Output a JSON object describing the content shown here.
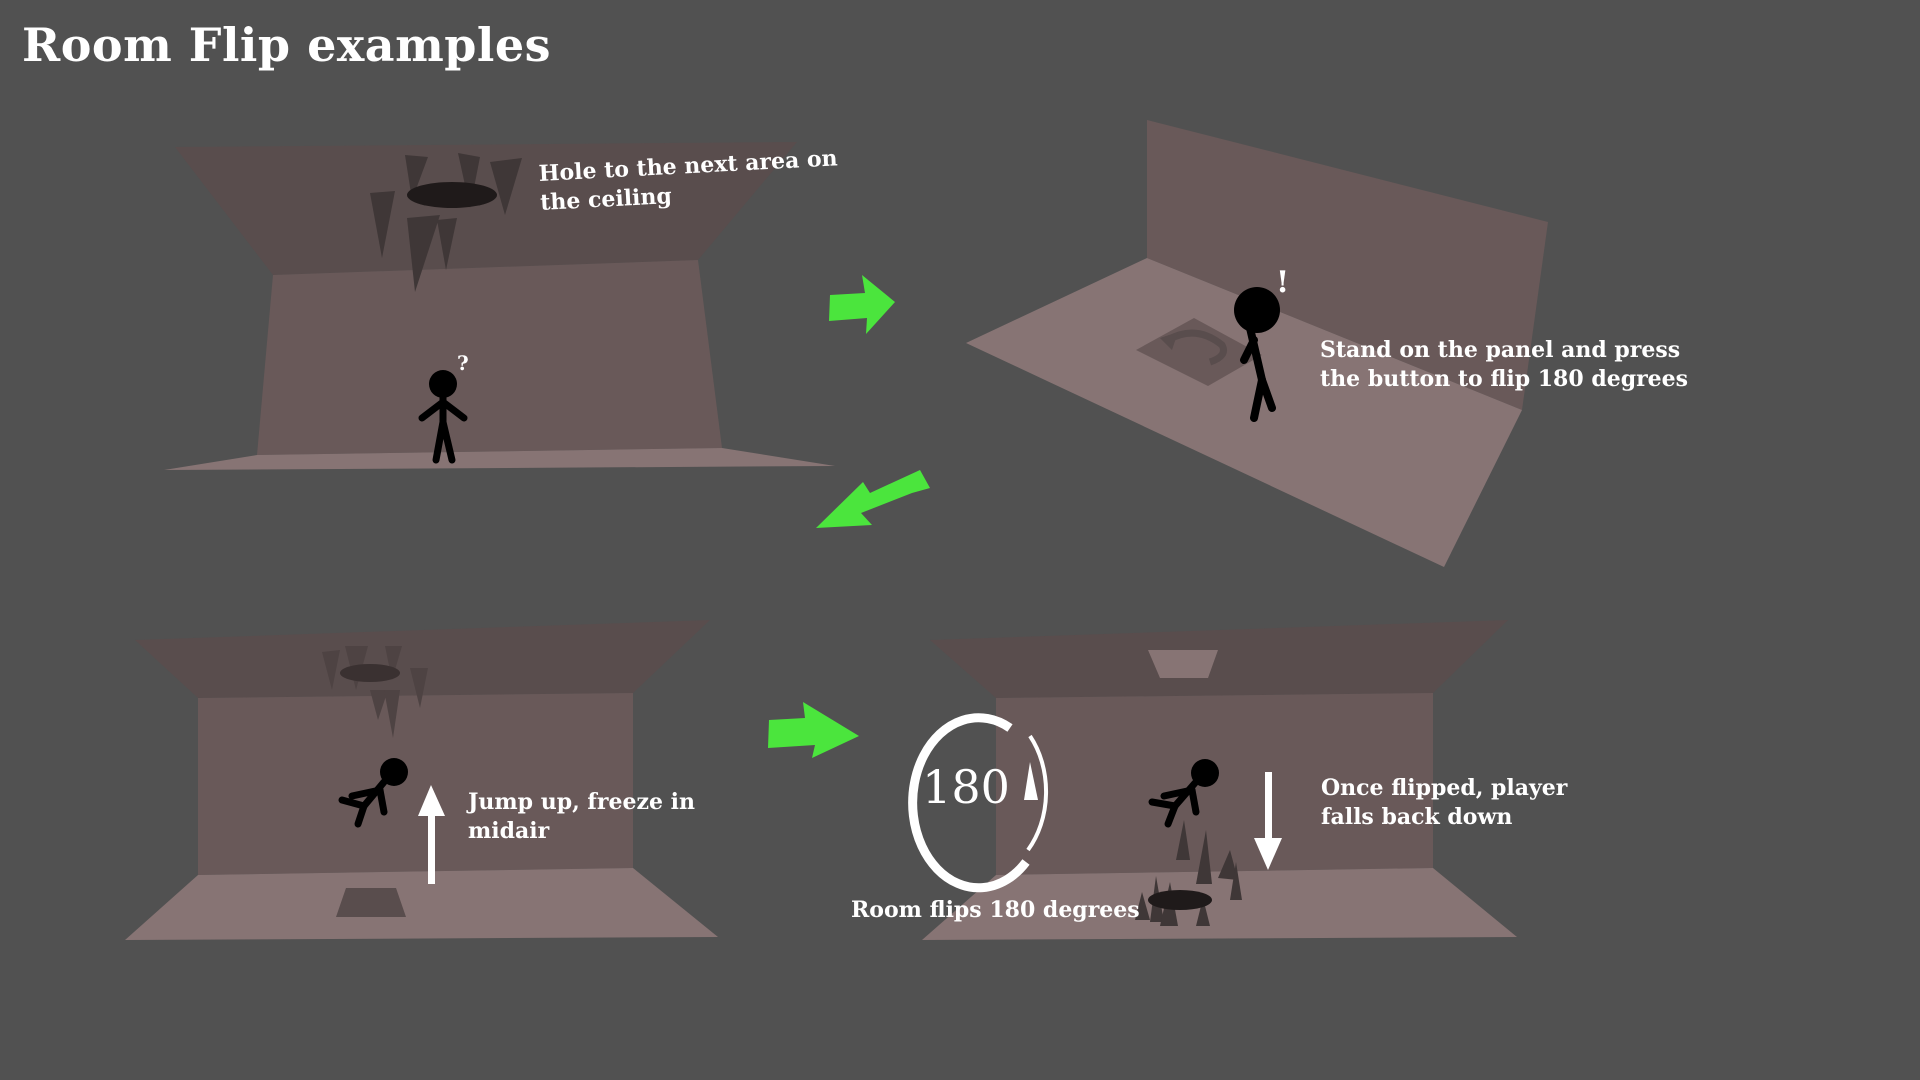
{
  "title": "Room Flip examples",
  "captions": {
    "hole": "Hole to the next area on the ceiling",
    "panel": "Stand on the panel and press the button to flip 180 degrees",
    "jump": "Jump up, freeze in midair",
    "flip": "Room flips 180 degrees",
    "fall": "Once flipped, player falls back down"
  },
  "dial": {
    "number": "180"
  },
  "marks": {
    "question": "?",
    "exclaim": "!"
  },
  "colors": {
    "background": "#515151",
    "ceiling": "#594d4d",
    "wall": "#695959",
    "floor": "#877474",
    "spike": "#3f3737",
    "hole": "#1f1a1a",
    "arrow_green": "#4be53d",
    "white": "#ffffff",
    "figure": "#000000"
  },
  "icons": [
    "green-arrow-right-icon",
    "green-arrow-down-left-icon",
    "white-arrow-up-icon",
    "white-arrow-down-icon",
    "circular-rotate-icon",
    "rotate-symbol-icon",
    "stick-figure-icon"
  ]
}
